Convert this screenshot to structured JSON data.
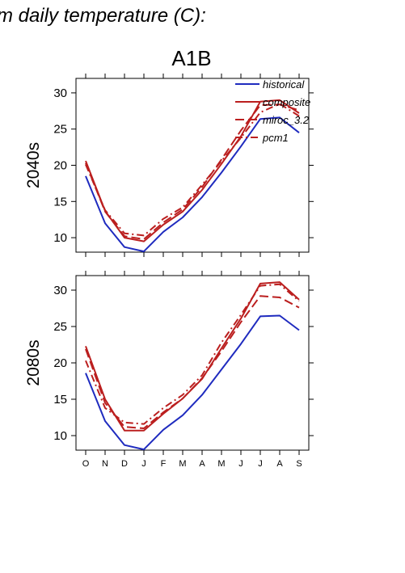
{
  "figure": {
    "heading": "m daily temperature (C):",
    "scenario": "A1B"
  },
  "colors": {
    "historical": "#1f2bbf",
    "projection": "#bb1f1f",
    "axis": "#000000"
  },
  "chart_data": [
    {
      "type": "line",
      "row_label": "2040s",
      "categories": [
        "O",
        "N",
        "D",
        "J",
        "F",
        "M",
        "A",
        "M",
        "J",
        "J",
        "A",
        "S"
      ],
      "ylim": [
        8,
        32
      ],
      "yticks": [
        10,
        15,
        20,
        25,
        30
      ],
      "legend_position": "top-right",
      "series": [
        {
          "name": "historical",
          "style": "solid",
          "color": "#1f2bbf",
          "values": [
            18.5,
            12.0,
            8.7,
            8.1,
            10.8,
            12.8,
            15.6,
            19.0,
            22.6,
            26.4,
            26.6,
            24.5
          ]
        },
        {
          "name": "composite",
          "style": "solid",
          "color": "#bb1f1f",
          "values": [
            20.6,
            13.7,
            10.0,
            9.5,
            11.8,
            13.6,
            16.6,
            20.2,
            24.0,
            28.8,
            29.0,
            27.2
          ]
        },
        {
          "name": "miroc_3.2",
          "style": "dashed",
          "color": "#bb1f1f",
          "values": [
            20.3,
            13.6,
            10.2,
            9.8,
            12.1,
            13.9,
            17.0,
            20.8,
            24.8,
            28.3,
            28.4,
            27.6
          ]
        },
        {
          "name": "pcm1",
          "style": "dashdot",
          "color": "#bb1f1f",
          "values": [
            20.1,
            13.8,
            10.6,
            10.3,
            12.6,
            14.2,
            17.3,
            20.6,
            23.8,
            27.3,
            28.5,
            26.8
          ]
        }
      ]
    },
    {
      "type": "line",
      "row_label": "2080s",
      "categories": [
        "O",
        "N",
        "D",
        "J",
        "F",
        "M",
        "A",
        "M",
        "J",
        "J",
        "A",
        "S"
      ],
      "ylim": [
        8,
        32
      ],
      "yticks": [
        10,
        15,
        20,
        25,
        30
      ],
      "series": [
        {
          "name": "historical",
          "style": "solid",
          "color": "#1f2bbf",
          "values": [
            18.6,
            12.0,
            8.7,
            8.1,
            10.8,
            12.8,
            15.6,
            19.1,
            22.6,
            26.4,
            26.5,
            24.5
          ]
        },
        {
          "name": "composite",
          "style": "solid",
          "color": "#bb1f1f",
          "values": [
            22.3,
            15.0,
            10.7,
            10.7,
            13.0,
            15.1,
            17.8,
            22.0,
            26.1,
            30.9,
            31.1,
            28.7
          ]
        },
        {
          "name": "miroc_3.2",
          "style": "dashed",
          "color": "#bb1f1f",
          "values": [
            21.9,
            14.5,
            11.2,
            11.0,
            13.2,
            15.1,
            17.9,
            21.6,
            25.6,
            29.2,
            29.0,
            27.6
          ]
        },
        {
          "name": "pcm1",
          "style": "dashdot",
          "color": "#bb1f1f",
          "values": [
            20.3,
            13.8,
            11.8,
            11.6,
            13.8,
            15.6,
            18.3,
            22.8,
            26.6,
            30.6,
            30.8,
            28.5
          ]
        }
      ]
    }
  ]
}
